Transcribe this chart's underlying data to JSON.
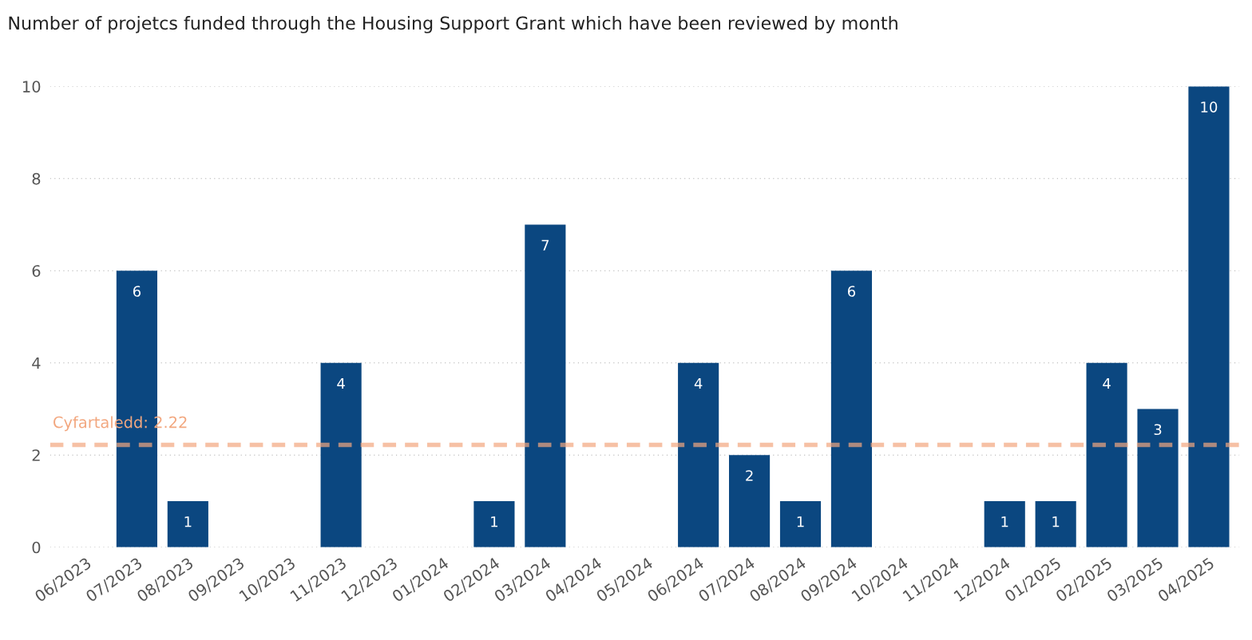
{
  "chart_data": {
    "type": "bar",
    "title": "Number of projetcs funded through the Housing Support Grant which have been reviewed by month",
    "categories": [
      "06/2023",
      "07/2023",
      "08/2023",
      "09/2023",
      "10/2023",
      "11/2023",
      "12/2023",
      "01/2024",
      "02/2024",
      "03/2024",
      "04/2024",
      "05/2024",
      "06/2024",
      "07/2024",
      "08/2024",
      "09/2024",
      "10/2024",
      "11/2024",
      "12/2024",
      "01/2025",
      "02/2025",
      "03/2025",
      "04/2025"
    ],
    "values": [
      0,
      6,
      1,
      0,
      0,
      4,
      0,
      0,
      1,
      7,
      0,
      0,
      4,
      2,
      1,
      6,
      0,
      0,
      1,
      1,
      4,
      3,
      10
    ],
    "value_labels": [
      null,
      "6",
      "1",
      null,
      null,
      "4",
      null,
      null,
      "1",
      "7",
      null,
      null,
      "4",
      "2",
      "1",
      "6",
      null,
      null,
      "1",
      "1",
      "4",
      "3",
      "10"
    ],
    "color": "#0b4780",
    "ylim": [
      0,
      10
    ],
    "yticks": [
      0,
      2,
      4,
      6,
      8,
      10
    ],
    "grid": "y",
    "ref_lines": [
      {
        "axis": "y",
        "value": 2.22,
        "label": "Cyfartaledd: 2.22",
        "color": "#f2a77f",
        "line_style": "dashed"
      }
    ]
  }
}
